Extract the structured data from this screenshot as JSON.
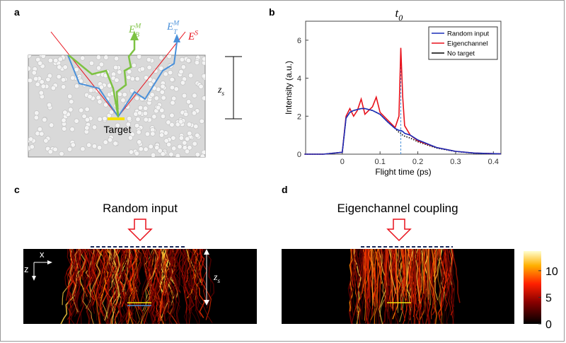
{
  "panel_labels": [
    "a",
    "b",
    "c",
    "d"
  ],
  "panel_a": {
    "target": "Target",
    "fields": [
      {
        "base": "E",
        "sub": "B",
        "sup": "M"
      },
      {
        "base": "E",
        "sub": "T",
        "sup": "M"
      },
      {
        "base": "E",
        "sup": "S"
      }
    ],
    "depth": {
      "base": "z",
      "sub": "s"
    }
  },
  "chart_data": {
    "type": "line",
    "x": [
      -0.1,
      -0.05,
      0,
      0.01,
      0.02,
      0.03,
      0.04,
      0.05,
      0.06,
      0.07,
      0.08,
      0.09,
      0.1,
      0.12,
      0.14,
      0.15,
      0.155,
      0.16,
      0.165,
      0.18,
      0.2,
      0.25,
      0.3,
      0.35,
      0.42
    ],
    "series": [
      {
        "name": "Random input",
        "color": "#1a2db8",
        "values": [
          0,
          0,
          0.1,
          1.9,
          2.2,
          2.3,
          2.35,
          2.4,
          2.4,
          2.35,
          2.3,
          2.2,
          2.1,
          1.7,
          1.35,
          1.25,
          1.25,
          1.2,
          1.1,
          1.0,
          0.75,
          0.35,
          0.15,
          0.06,
          0.02
        ]
      },
      {
        "name": "Eigenchannel",
        "color": "#e8111b",
        "values": [
          0,
          0,
          0.1,
          2.0,
          2.4,
          2.0,
          2.3,
          2.9,
          2.1,
          2.3,
          2.5,
          3.0,
          2.2,
          1.8,
          1.4,
          2.0,
          5.6,
          3.0,
          1.5,
          1.0,
          0.7,
          0.35,
          0.15,
          0.06,
          0.02
        ]
      },
      {
        "name": "No target",
        "color": "#000000",
        "dash": "dotted",
        "values": [
          0,
          0,
          0.1,
          1.9,
          2.2,
          2.3,
          2.35,
          2.4,
          2.4,
          2.35,
          2.3,
          2.2,
          2.1,
          1.7,
          1.35,
          1.15,
          1.1,
          1.0,
          0.95,
          0.85,
          0.65,
          0.32,
          0.14,
          0.05,
          0.02
        ]
      }
    ],
    "xlim": [
      -0.097,
      0.42
    ],
    "xticks": [
      0,
      0.1,
      0.2,
      0.3,
      0.4
    ],
    "ylim": [
      0,
      7
    ],
    "yticks": [
      0,
      2,
      4,
      6
    ],
    "xlabel": "Flight time (ps)",
    "ylabel": "Intensity (a.u.)",
    "legend": "upper right",
    "annotation": {
      "text": "t",
      "sub": "0",
      "x": 0.155
    }
  },
  "panel_c": {
    "title": "Random input",
    "x_axis": "x",
    "z_axis": "z",
    "depth": {
      "base": "z",
      "sub": "s"
    }
  },
  "panel_d": {
    "title": "Eigenchannel coupling"
  },
  "colorbar": {
    "range": [
      0,
      13.7
    ],
    "ticks": [
      0,
      5,
      10
    ]
  }
}
